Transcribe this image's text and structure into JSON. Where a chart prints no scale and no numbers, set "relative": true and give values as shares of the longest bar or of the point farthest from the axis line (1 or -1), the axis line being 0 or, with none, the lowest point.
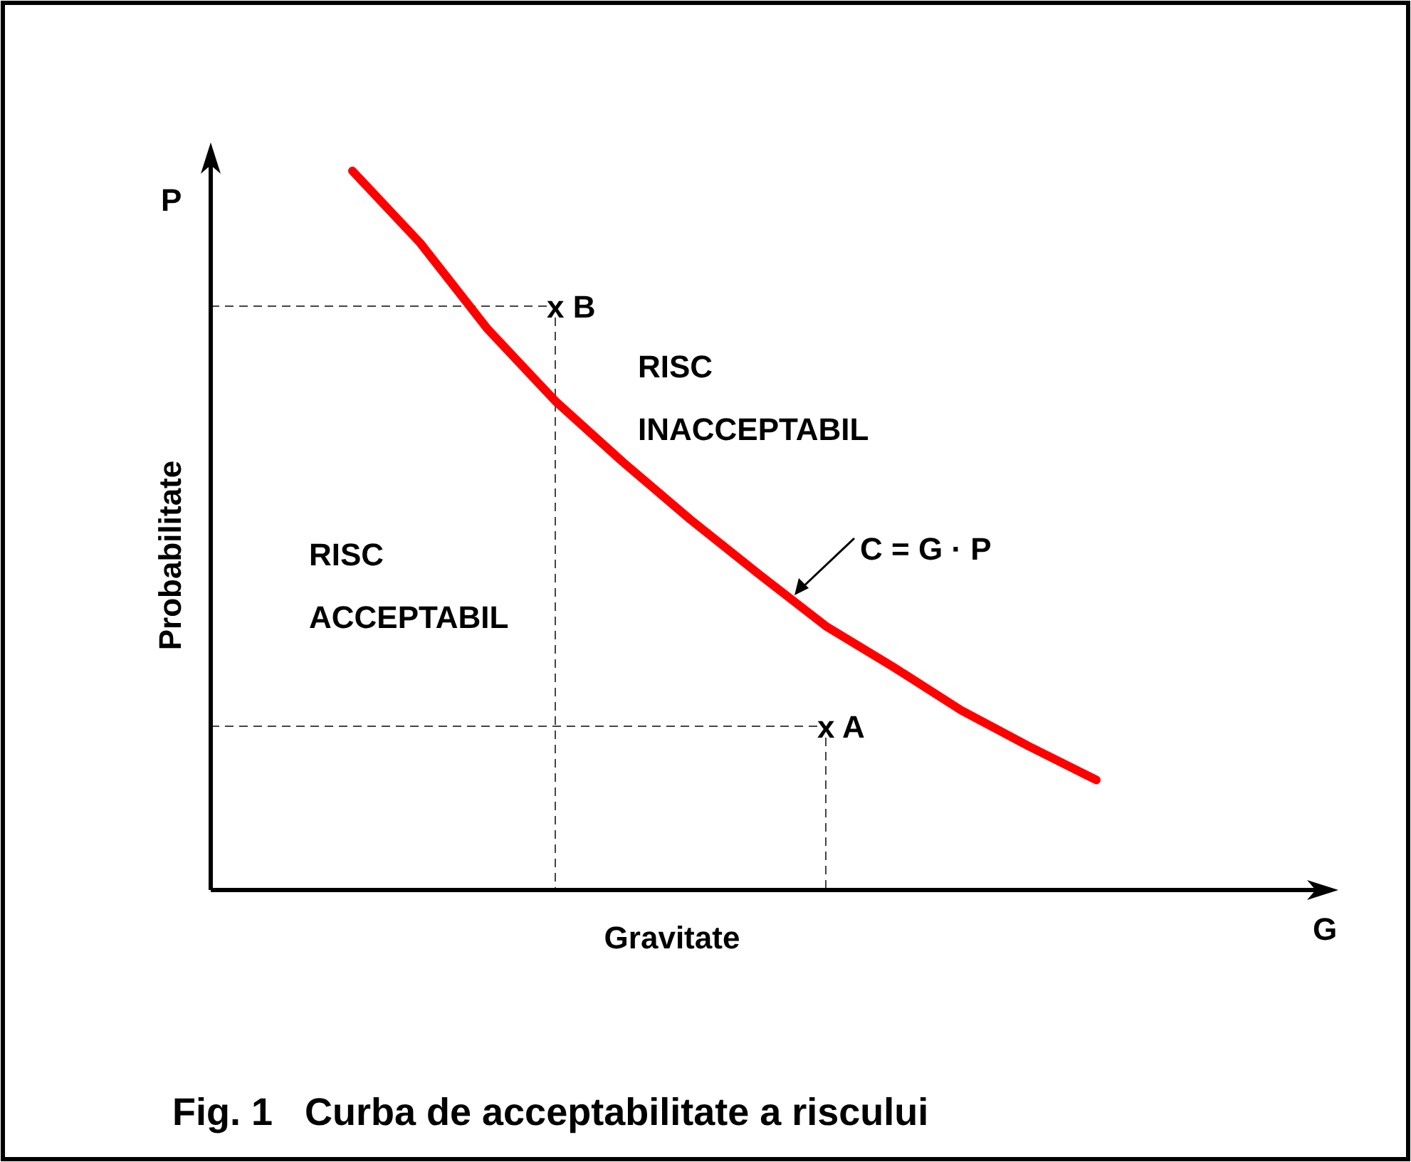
{
  "chart_data": {
    "type": "line",
    "title": "Fig. 1   Curba de acceptabilitate a riscului",
    "xlabel": "Gravitate",
    "ylabel": "Probabilitate",
    "relative": true,
    "grid": false,
    "annotations": [
      "RISC INACCEPTABIL",
      "RISC ACCEPTABIL",
      "C = G · P",
      "P",
      "G",
      "x B",
      "x A"
    ],
    "categories": [
      null,
      null,
      null,
      null,
      null,
      null,
      null,
      null,
      null,
      null,
      null,
      null,
      null,
      null,
      null,
      null,
      null
    ],
    "series": [
      {
        "color": "#ff0000",
        "values": [
          null,
          null,
          1.0,
          0.9,
          0.78,
          0.68,
          0.595,
          0.515,
          0.44,
          0.367,
          0.31,
          0.25,
          0.2,
          0.153,
          null,
          null,
          null
        ]
      }
    ]
  }
}
